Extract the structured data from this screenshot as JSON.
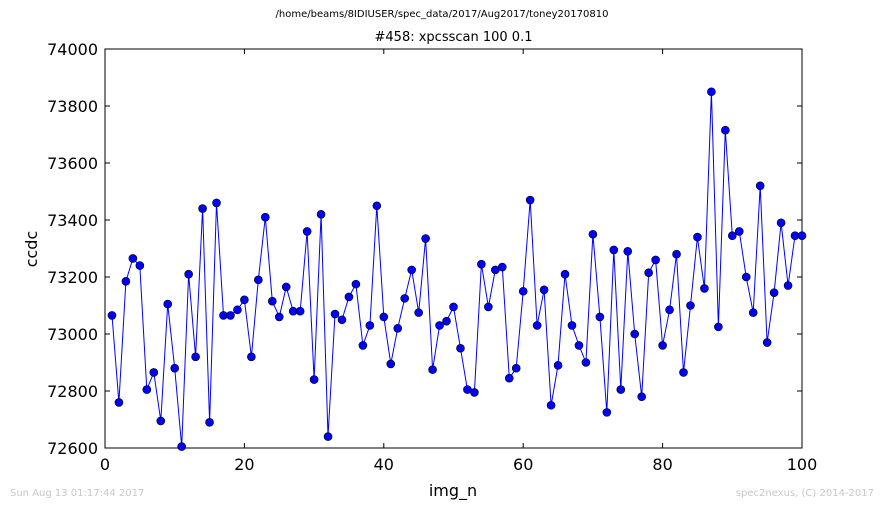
{
  "header": {
    "path": "/home/beams/8IDIUSER/spec_data/2017/Aug2017/toney20170810",
    "scan_title": "#458: xpcsscan 100 0.1"
  },
  "footer": {
    "timestamp": "Sun Aug 13 01:17:44 2017",
    "credit": "spec2nexus, (C) 2014-2017"
  },
  "colors": {
    "series": "#0000ff",
    "axes": "#000000",
    "footer": "#c8c8c8"
  },
  "chart_data": {
    "type": "line",
    "title": "#458: xpcsscan 100 0.1",
    "xlabel": "img_n",
    "ylabel": "ccdc",
    "xlim": [
      0,
      100
    ],
    "ylim": [
      72600,
      74000
    ],
    "xticks": [
      "0",
      "20",
      "40",
      "60",
      "80",
      "100"
    ],
    "yticks": [
      "72600",
      "72800",
      "73000",
      "73200",
      "73400",
      "73600",
      "73800",
      "74000"
    ],
    "grid": false,
    "marker": "circle",
    "x": [
      1,
      2,
      3,
      4,
      5,
      6,
      7,
      8,
      9,
      10,
      11,
      12,
      13,
      14,
      15,
      16,
      17,
      18,
      19,
      20,
      21,
      22,
      23,
      24,
      25,
      26,
      27,
      28,
      29,
      30,
      31,
      32,
      33,
      34,
      35,
      36,
      37,
      38,
      39,
      40,
      41,
      42,
      43,
      44,
      45,
      46,
      47,
      48,
      49,
      50,
      51,
      52,
      53,
      54,
      55,
      56,
      57,
      58,
      59,
      60,
      61,
      62,
      63,
      64,
      65,
      66,
      67,
      68,
      69,
      70,
      71,
      72,
      73,
      74,
      75,
      76,
      77,
      78,
      79,
      80,
      81,
      82,
      83,
      84,
      85,
      86,
      87,
      88,
      89,
      90,
      91,
      92,
      93,
      94,
      95,
      96,
      97,
      98,
      99,
      100
    ],
    "y": [
      73065,
      72760,
      73185,
      73265,
      73240,
      72805,
      72865,
      72695,
      73105,
      72880,
      72605,
      73210,
      72920,
      73440,
      72690,
      73460,
      73065,
      73065,
      73085,
      73120,
      72920,
      73190,
      73410,
      73115,
      73060,
      73165,
      73080,
      73080,
      73360,
      72840,
      73420,
      72640,
      73070,
      73050,
      73130,
      73175,
      72960,
      73030,
      73450,
      73060,
      72895,
      73020,
      73125,
      73225,
      73075,
      73335,
      72875,
      73030,
      73045,
      73095,
      72950,
      72805,
      72795,
      73245,
      73095,
      73225,
      73235,
      72845,
      72880,
      73150,
      73470,
      73030,
      73155,
      72750,
      72890,
      73210,
      73030,
      72960,
      72900,
      73350,
      73060,
      72725,
      73295,
      72805,
      73290,
      73000,
      72780,
      73215,
      73260,
      72960,
      73085,
      73280,
      72865,
      73100,
      73340,
      73160,
      73850,
      73025,
      73715,
      73345,
      73360,
      73200,
      73075,
      73520,
      72970,
      73145,
      73390,
      73170,
      73345,
      73345
    ]
  }
}
